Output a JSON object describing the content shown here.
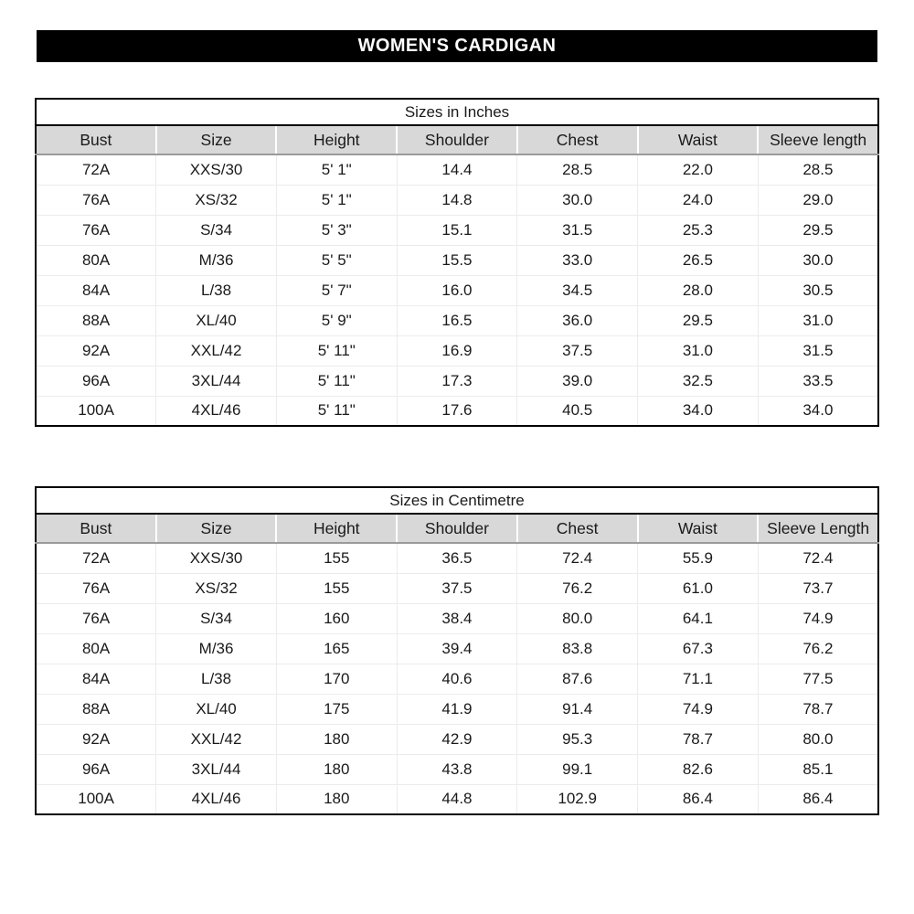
{
  "banner": {
    "title": "WOMEN'S CARDIGAN"
  },
  "colors": {
    "banner_bg": "#000000",
    "banner_text": "#ffffff",
    "header_row_bg": "#d8d8d8",
    "outer_border": "#000000",
    "header_underline": "#9a9a9a",
    "gridline": "#ececec",
    "text": "#1a1a1a"
  },
  "tables": [
    {
      "title": "Sizes in Inches",
      "columns": [
        "Bust",
        "Size",
        "Height",
        "Shoulder",
        "Chest",
        "Waist",
        "Sleeve length"
      ],
      "rows": [
        [
          "72A",
          "XXS/30",
          "5' 1\"",
          "14.4",
          "28.5",
          "22.0",
          "28.5"
        ],
        [
          "76A",
          "XS/32",
          "5' 1\"",
          "14.8",
          "30.0",
          "24.0",
          "29.0"
        ],
        [
          "76A",
          "S/34",
          "5' 3\"",
          "15.1",
          "31.5",
          "25.3",
          "29.5"
        ],
        [
          "80A",
          "M/36",
          "5' 5\"",
          "15.5",
          "33.0",
          "26.5",
          "30.0"
        ],
        [
          "84A",
          "L/38",
          "5' 7\"",
          "16.0",
          "34.5",
          "28.0",
          "30.5"
        ],
        [
          "88A",
          "XL/40",
          "5' 9\"",
          "16.5",
          "36.0",
          "29.5",
          "31.0"
        ],
        [
          "92A",
          "XXL/42",
          "5' 11\"",
          "16.9",
          "37.5",
          "31.0",
          "31.5"
        ],
        [
          "96A",
          "3XL/44",
          "5' 11\"",
          "17.3",
          "39.0",
          "32.5",
          "33.5"
        ],
        [
          "100A",
          "4XL/46",
          "5' 11\"",
          "17.6",
          "40.5",
          "34.0",
          "34.0"
        ]
      ]
    },
    {
      "title": "Sizes in Centimetre",
      "columns": [
        "Bust",
        "Size",
        "Height",
        "Shoulder",
        "Chest",
        "Waist",
        "Sleeve Length"
      ],
      "rows": [
        [
          "72A",
          "XXS/30",
          "155",
          "36.5",
          "72.4",
          "55.9",
          "72.4"
        ],
        [
          "76A",
          "XS/32",
          "155",
          "37.5",
          "76.2",
          "61.0",
          "73.7"
        ],
        [
          "76A",
          "S/34",
          "160",
          "38.4",
          "80.0",
          "64.1",
          "74.9"
        ],
        [
          "80A",
          "M/36",
          "165",
          "39.4",
          "83.8",
          "67.3",
          "76.2"
        ],
        [
          "84A",
          "L/38",
          "170",
          "40.6",
          "87.6",
          "71.1",
          "77.5"
        ],
        [
          "88A",
          "XL/40",
          "175",
          "41.9",
          "91.4",
          "74.9",
          "78.7"
        ],
        [
          "92A",
          "XXL/42",
          "180",
          "42.9",
          "95.3",
          "78.7",
          "80.0"
        ],
        [
          "96A",
          "3XL/44",
          "180",
          "43.8",
          "99.1",
          "82.6",
          "85.1"
        ],
        [
          "100A",
          "4XL/46",
          "180",
          "44.8",
          "102.9",
          "86.4",
          "86.4"
        ]
      ]
    }
  ]
}
